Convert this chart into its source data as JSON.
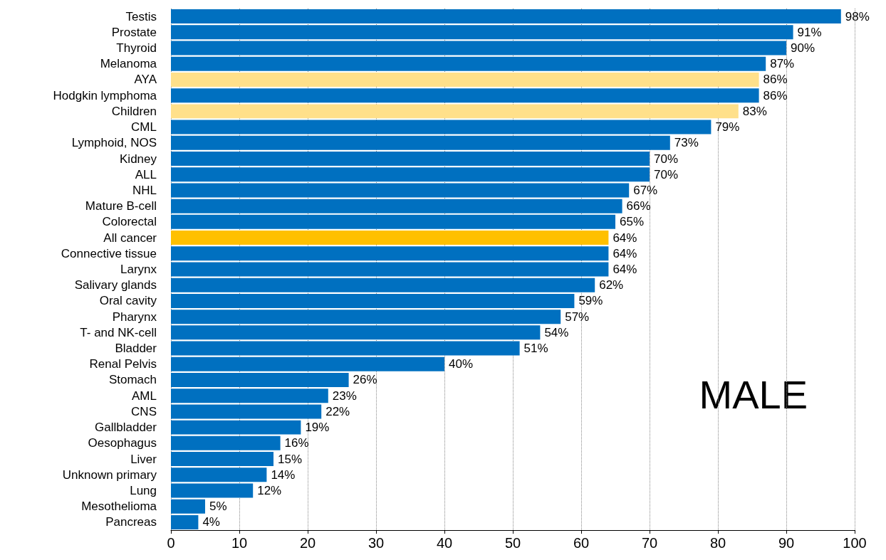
{
  "chart_data": {
    "type": "bar",
    "orientation": "horizontal",
    "categories": [
      "Testis",
      "Prostate",
      "Thyroid",
      "Melanoma",
      "AYA",
      "Hodgkin lymphoma",
      "Children",
      "CML",
      "Lymphoid, NOS",
      "Kidney",
      "ALL",
      "NHL",
      "Mature B-cell",
      "Colorectal",
      "All cancer",
      "Connective tissue",
      "Larynx",
      "Salivary glands",
      "Oral cavity",
      "Pharynx",
      "T- and NK-cell",
      "Bladder",
      "Renal Pelvis",
      "Stomach",
      "AML",
      "CNS",
      "Gallbladder",
      "Oesophagus",
      "Liver",
      "Unknown primary",
      "Lung",
      "Mesothelioma",
      "Pancreas"
    ],
    "values": [
      98,
      91,
      90,
      87,
      86,
      86,
      83,
      79,
      73,
      70,
      70,
      67,
      66,
      65,
      64,
      64,
      64,
      62,
      59,
      57,
      54,
      51,
      40,
      26,
      23,
      22,
      19,
      16,
      15,
      14,
      12,
      5,
      4
    ],
    "value_labels": [
      "98%",
      "91%",
      "90%",
      "87%",
      "86%",
      "86%",
      "83%",
      "79%",
      "73%",
      "70%",
      "70%",
      "67%",
      "66%",
      "65%",
      "64%",
      "64%",
      "64%",
      "62%",
      "59%",
      "57%",
      "54%",
      "51%",
      "40%",
      "26%",
      "23%",
      "22%",
      "19%",
      "16%",
      "15%",
      "14%",
      "12%",
      "5%",
      "4%"
    ],
    "colors": [
      "#0070c0",
      "#0070c0",
      "#0070c0",
      "#0070c0",
      "#ffe08a",
      "#0070c0",
      "#ffe08a",
      "#0070c0",
      "#0070c0",
      "#0070c0",
      "#0070c0",
      "#0070c0",
      "#0070c0",
      "#0070c0",
      "#ffc000",
      "#0070c0",
      "#0070c0",
      "#0070c0",
      "#0070c0",
      "#0070c0",
      "#0070c0",
      "#0070c0",
      "#0070c0",
      "#0070c0",
      "#0070c0",
      "#0070c0",
      "#0070c0",
      "#0070c0",
      "#0070c0",
      "#0070c0",
      "#0070c0",
      "#0070c0",
      "#0070c0"
    ],
    "xlim": [
      0,
      100
    ],
    "xticks": [
      0,
      10,
      20,
      30,
      40,
      50,
      60,
      70,
      80,
      90,
      100
    ],
    "grid": "x",
    "annotations": [
      "MALE"
    ]
  }
}
